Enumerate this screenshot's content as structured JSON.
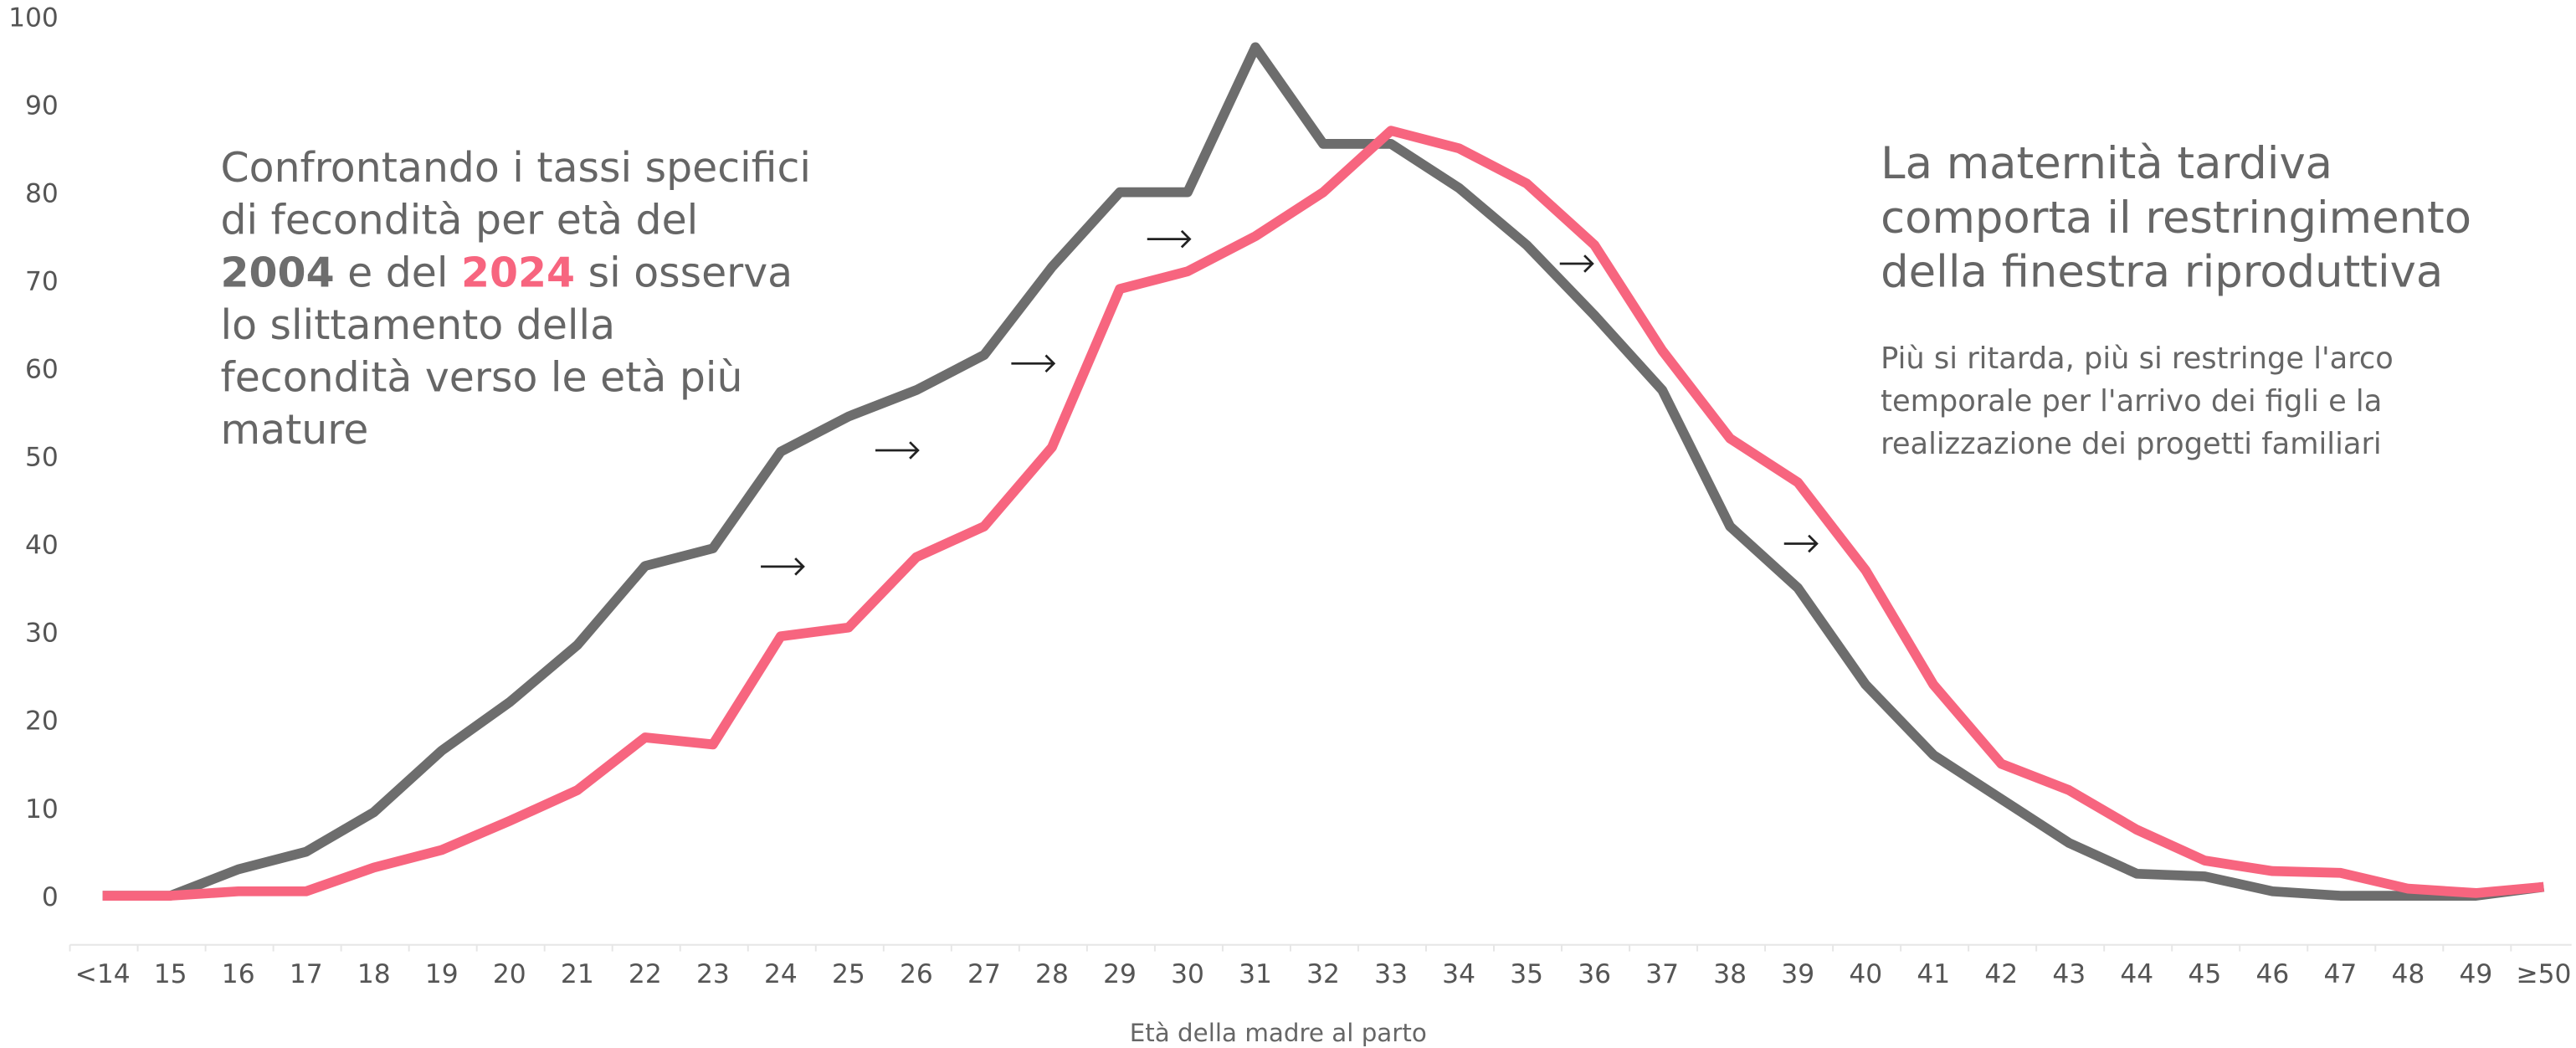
{
  "chart_data": {
    "type": "line",
    "x_label": "Età della madre al parto",
    "categories": [
      "<14",
      "15",
      "16",
      "17",
      "18",
      "19",
      "20",
      "21",
      "22",
      "23",
      "24",
      "25",
      "26",
      "27",
      "28",
      "29",
      "30",
      "31",
      "32",
      "33",
      "34",
      "35",
      "36",
      "37",
      "38",
      "39",
      "40",
      "41",
      "42",
      "43",
      "44",
      "45",
      "46",
      "47",
      "48",
      "49",
      "≥50"
    ],
    "series": [
      {
        "name": "2004",
        "color": "#6d6d6d",
        "values": [
          0,
          0,
          3,
          5,
          9.5,
          16.5,
          22,
          28.5,
          37.5,
          39.5,
          50.5,
          54.5,
          57.5,
          61.5,
          71.5,
          80,
          80,
          96.5,
          85.5,
          85.5,
          80.5,
          74,
          66,
          57.5,
          42,
          35,
          24,
          16,
          11,
          6,
          2.5,
          2.2,
          0.5,
          0,
          0,
          0,
          1
        ]
      },
      {
        "name": "2024",
        "color": "#f7657f",
        "values": [
          0,
          0,
          0.5,
          0.5,
          3.2,
          5.2,
          8.5,
          12,
          18,
          17.2,
          29.5,
          30.5,
          38.5,
          42,
          51,
          69,
          71,
          75,
          80,
          87,
          85,
          81,
          74,
          62,
          52,
          47,
          37,
          24,
          15,
          12,
          7.5,
          4,
          2.8,
          2.6,
          0.8,
          0.3,
          1
        ]
      }
    ],
    "ylim": [
      0,
      100
    ],
    "yticks": [
      0,
      10,
      20,
      30,
      40,
      50,
      60,
      70,
      80,
      90,
      100
    ],
    "grid": false,
    "annotation_left": {
      "lines_before": [
        "Confrontando i tassi specifici",
        "di fecondità per età del"
      ],
      "connector": " e del ",
      "tail": " si osserva",
      "lines_after": [
        "lo slittamento della",
        "fecondità verso le età più",
        "mature"
      ]
    },
    "annotation_right": {
      "title": [
        "La maternità tardiva",
        "comporta il restringimento",
        "della finestra riproduttiva"
      ],
      "body": [
        "Più si ritarda, più si restringe l'arco",
        "temporale per l'arrivo dei figli e la",
        "realizzazione dei progetti familiari"
      ]
    }
  }
}
